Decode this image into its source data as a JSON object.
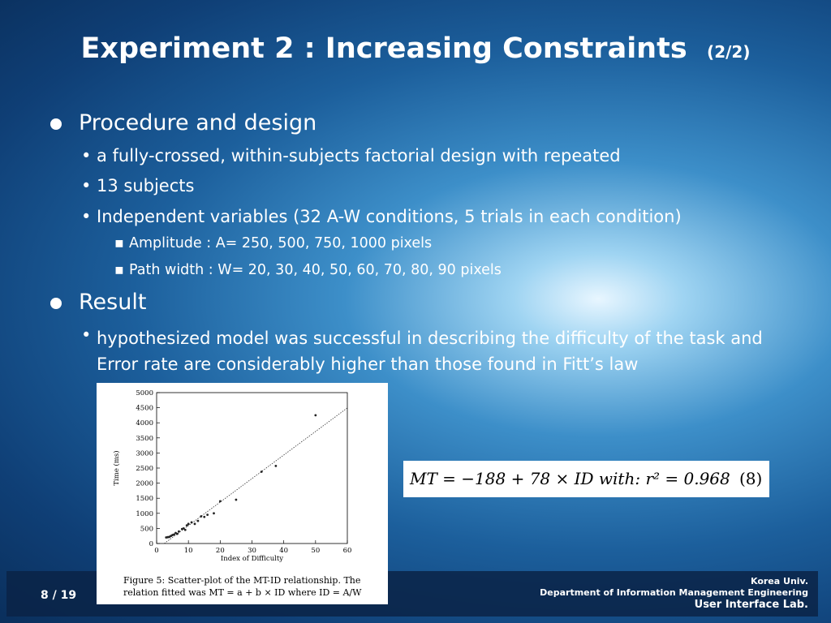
{
  "title": {
    "main": "Experiment 2 : Increasing Constraints",
    "sub": "(2/2)"
  },
  "sections": [
    {
      "heading": "Procedure and design",
      "items": [
        {
          "text": "a fully-crossed, within-subjects factorial design with repeated"
        },
        {
          "text": "13 subjects"
        },
        {
          "text": "Independent variables (32 A-W conditions,  5 trials in each condition)",
          "subitems": [
            "Amplitude  : A= 250, 500, 750, 1000 pixels",
            "Path width : W= 20, 30, 40, 50, 60, 70, 80, 90 pixels"
          ]
        }
      ]
    },
    {
      "heading": "Result",
      "items": [
        {
          "text": "hypothesized model was successful in describing the difficulty of the task and Error rate are considerably higher than those found in Fitt’s law"
        }
      ]
    }
  ],
  "figure": {
    "chart_data": {
      "type": "scatter",
      "x_label": "Index of Difficulty",
      "y_label": "Time (ms)",
      "xlim": [
        0,
        60
      ],
      "ylim": [
        0,
        5000
      ],
      "xticks": [
        0,
        10,
        20,
        30,
        40,
        50,
        60
      ],
      "yticks": [
        0,
        500,
        1000,
        1500,
        2000,
        2500,
        3000,
        3500,
        4000,
        4500,
        5000
      ],
      "x": [
        3,
        3.5,
        4,
        4.5,
        5,
        5.5,
        6,
        6.5,
        7,
        8,
        8.5,
        9,
        9.5,
        10,
        11,
        12,
        13,
        14,
        15,
        16,
        18,
        20,
        25,
        33,
        37.5,
        50
      ],
      "y": [
        200,
        210,
        220,
        250,
        280,
        300,
        350,
        320,
        400,
        480,
        500,
        450,
        600,
        650,
        700,
        650,
        750,
        900,
        880,
        950,
        1000,
        1400,
        1450,
        2380,
        2570,
        4250
      ],
      "fit_line": {
        "x": [
          2.4,
          60
        ],
        "y": [
          0,
          4492
        ]
      },
      "color": "#222222"
    },
    "caption": [
      "Figure 5:  Scatter-plot of the MT-ID relationship.  The",
      "relation fitted was MT = a + b × ID  where ID = A/W"
    ]
  },
  "equation": {
    "formula": "MT = −188 + 78 × ID  with:  r² = 0.968",
    "number": "(8)"
  },
  "footer": {
    "page": "8 / 19",
    "org": "Korea Univ.",
    "dept": "Department of  Information Management Engineering",
    "lab": "User Interface Lab."
  }
}
